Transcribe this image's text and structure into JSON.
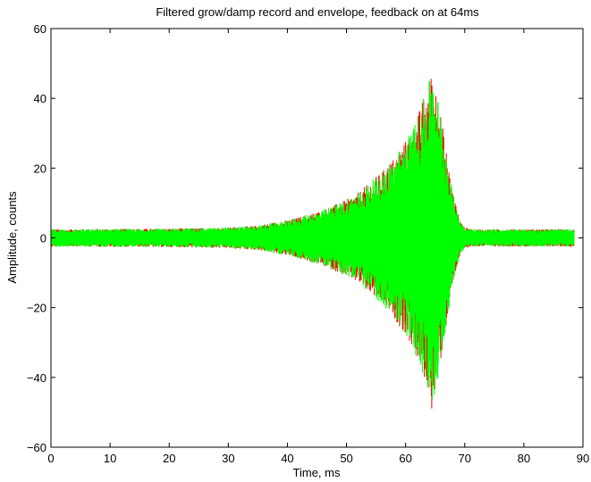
{
  "chart_data": {
    "type": "line",
    "title": "Filtered grow/damp record and envelope, feedback on at 64ms",
    "xlabel": "Time, ms",
    "ylabel": "Amplitude, counts",
    "xlim": [
      0,
      90
    ],
    "ylim": [
      -60,
      60
    ],
    "xticks": [
      "0",
      "10",
      "20",
      "30",
      "40",
      "50",
      "60",
      "70",
      "80",
      "90"
    ],
    "yticks": [
      "−60",
      "−40",
      "−20",
      "0",
      "20",
      "40",
      "60"
    ],
    "grid": false,
    "legend": "none",
    "series": [
      {
        "role": "envelope",
        "color": "#ff0000",
        "x": [
          0,
          5,
          10,
          15,
          20,
          25,
          30,
          35,
          38,
          40,
          42,
          44,
          46,
          48,
          50,
          52,
          54,
          56,
          58,
          60,
          61,
          62,
          63,
          64,
          64.5,
          65,
          66,
          67,
          68,
          69,
          70,
          71,
          72,
          75,
          80,
          85,
          88.5
        ],
        "y": [
          2.5,
          2.5,
          2.6,
          2.6,
          2.7,
          2.8,
          3,
          3.5,
          4.5,
          5,
          6,
          7,
          8,
          9.5,
          11,
          13,
          16,
          19,
          23,
          28,
          31,
          35,
          40,
          45,
          50,
          45,
          35,
          24,
          13,
          6,
          3,
          2.6,
          2.5,
          2.5,
          2.5,
          2.5,
          2.5
        ]
      },
      {
        "role": "record",
        "color": "#00ff00",
        "x": [
          0,
          5,
          10,
          15,
          20,
          25,
          30,
          35,
          38,
          40,
          42,
          44,
          46,
          48,
          50,
          52,
          54,
          56,
          58,
          60,
          61,
          62,
          63,
          64,
          64.5,
          65,
          66,
          67,
          68,
          69,
          70,
          71,
          72,
          75,
          80,
          85,
          88.5
        ],
        "y": [
          2.5,
          2.5,
          2.6,
          2.6,
          2.7,
          2.8,
          3,
          3.5,
          4.5,
          5,
          6,
          7,
          8,
          9.5,
          11,
          13,
          16,
          19,
          23,
          28,
          31,
          35,
          40,
          45,
          49,
          45,
          35,
          24,
          13,
          6,
          3,
          2.6,
          2.5,
          2.5,
          2.5,
          2.5,
          2.5
        ]
      }
    ]
  }
}
